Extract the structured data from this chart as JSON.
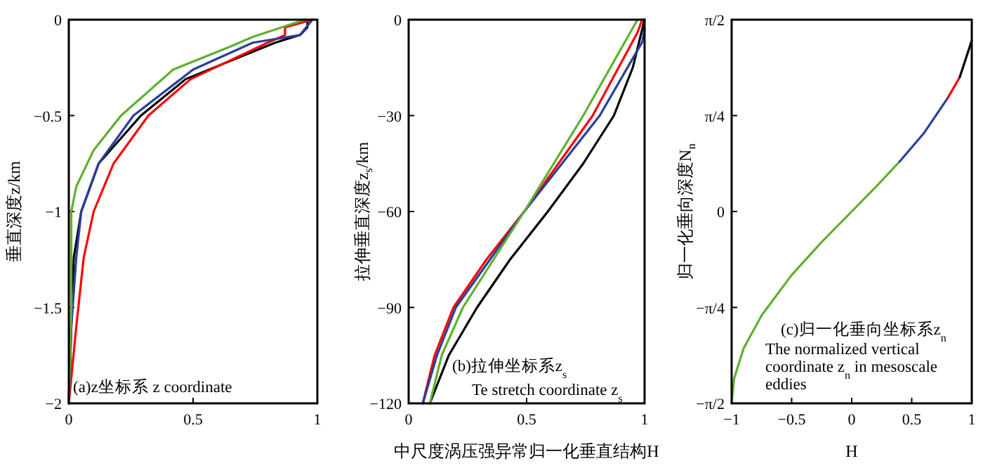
{
  "chart_data": [
    {
      "type": "line",
      "ylabel": "垂直深度z/km",
      "xlim": [
        0,
        1
      ],
      "ylim": [
        -2,
        0
      ],
      "xticks": [
        0,
        0.5,
        1
      ],
      "yticks": [
        0,
        -0.5,
        -1,
        -1.5,
        -2
      ],
      "annotations": [
        "(a)z坐标系 z coordinate"
      ],
      "series": [
        {
          "color": "#000000",
          "x": [
            0.96,
            0.96,
            0.93,
            0.83,
            0.47,
            0.29,
            0.12,
            0.05,
            0.02,
            0.01,
            0
          ],
          "values": [
            0,
            -0.04,
            -0.08,
            -0.12,
            -0.31,
            -0.5,
            -0.75,
            -1,
            -1.24,
            -1.6,
            -2
          ]
        },
        {
          "color": "#ff0000",
          "x": [
            0.98,
            0.87,
            0.87,
            0.8,
            0.49,
            0.32,
            0.18,
            0.1,
            0.06,
            0.03,
            0
          ],
          "values": [
            0,
            -0.04,
            -0.08,
            -0.12,
            -0.31,
            -0.5,
            -0.75,
            -1,
            -1.24,
            -1.6,
            -2
          ]
        },
        {
          "color": "#2a3e9c",
          "x": [
            0.98,
            0.93,
            0.74,
            0.5,
            0.26,
            0.12,
            0.05,
            0.03,
            0.01,
            0
          ],
          "values": [
            0,
            -0.08,
            -0.12,
            -0.26,
            -0.5,
            -0.75,
            -1,
            -1.24,
            -1.6,
            -2
          ]
        },
        {
          "color": "#5fb030",
          "x": [
            0.95,
            0.74,
            0.65,
            0.42,
            0.21,
            0.1,
            0.03,
            0.01,
            0.01,
            0
          ],
          "values": [
            0,
            -0.09,
            -0.14,
            -0.26,
            -0.5,
            -0.68,
            -0.87,
            -1,
            -1.5,
            -2
          ]
        }
      ]
    },
    {
      "type": "line",
      "ylabel": "拉伸垂直深度z$_{s}$/km",
      "xlabel": "中尺度涡压强异常归一化垂直结构H",
      "xlim": [
        0,
        1
      ],
      "ylim": [
        -120,
        0
      ],
      "xticks": [
        0,
        0.5,
        1
      ],
      "yticks": [
        0,
        -30,
        -60,
        -90,
        -120
      ],
      "annotations": [
        "(b)拉伸坐标系z$_{s}$",
        "Te stretch coordinate z$_{s}$"
      ],
      "series": [
        {
          "color": "#000000",
          "x": [
            1,
            0.95,
            0.87,
            0.74,
            0.59,
            0.43,
            0.29,
            0.17,
            0.09
          ],
          "values": [
            0,
            -15,
            -30,
            -45,
            -60,
            -75,
            -90,
            -105,
            -120
          ]
        },
        {
          "color": "#ff0000",
          "x": [
            0.99,
            0.97,
            0.78,
            0.49,
            0.33,
            0.19,
            0.11,
            0.06
          ],
          "values": [
            0,
            -4,
            -30,
            -60,
            -75,
            -90,
            -105,
            -120
          ]
        },
        {
          "color": "#2a3e9c",
          "x": [
            1,
            0.99,
            0.81,
            0.49,
            0.2,
            0.12,
            0.06
          ],
          "values": [
            -3,
            -7,
            -30,
            -60,
            -90,
            -105,
            -120
          ]
        },
        {
          "color": "#5fb030",
          "x": [
            0.97,
            0.74,
            0.49,
            0.23,
            0.14,
            0.09
          ],
          "values": [
            0,
            -30,
            -60,
            -90,
            -105,
            -120
          ]
        }
      ]
    },
    {
      "type": "line",
      "ylabel": "归一化垂向深度N$_{n}$",
      "xlabel": "H",
      "xlim": [
        -1,
        1
      ],
      "ylim": [
        -1.5708,
        1.5708
      ],
      "xticks": [
        -1,
        -0.5,
        0,
        0.5,
        1
      ],
      "yticks": [
        {
          "value": 1.5708,
          "label": "π/2"
        },
        {
          "value": 0.7854,
          "label": "π/4"
        },
        0,
        {
          "value": -0.7854,
          "label": "−π/4"
        },
        {
          "value": -1.5708,
          "label": "−π/2"
        }
      ],
      "annotations": [
        "(c)归一化垂向坐标系z$_{n}$",
        "The normalized vertical coordinate z$_{n}$ in mesoscale eddies"
      ],
      "series": [
        {
          "color": "#5fb030",
          "x": [
            -1,
            -0.98,
            -0.9,
            -0.75,
            -0.5,
            -0.25,
            0,
            0.2,
            0.4
          ],
          "values": [
            -1.57,
            -1.37,
            -1.12,
            -0.85,
            -0.52,
            -0.25,
            0,
            0.2,
            0.41
          ]
        },
        {
          "color": "#2a3e9c",
          "x": [
            0.4,
            0.6,
            0.8
          ],
          "values": [
            0.41,
            0.64,
            0.93
          ]
        },
        {
          "color": "#ff0000",
          "x": [
            0.8,
            0.9
          ],
          "values": [
            0.93,
            1.1
          ]
        },
        {
          "color": "#000000",
          "x": [
            0.9,
            0.96,
            1
          ],
          "values": [
            1.1,
            1.28,
            1.4
          ]
        }
      ]
    }
  ]
}
